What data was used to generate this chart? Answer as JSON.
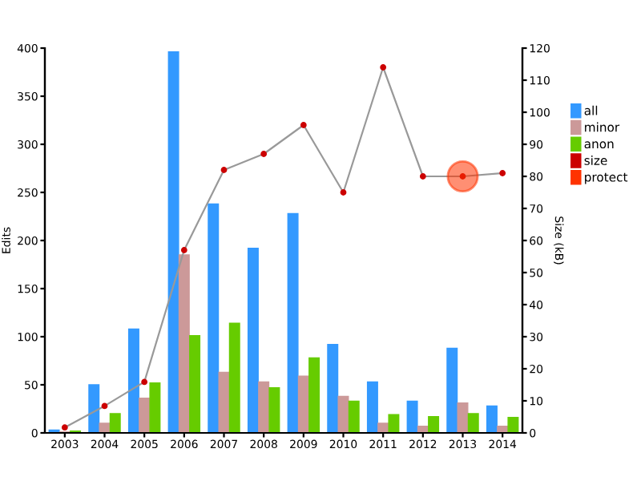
{
  "chart_data": {
    "type": "bar",
    "ylabel": "Edits",
    "y2label": "Size (kB)",
    "categories": [
      "2003",
      "2004",
      "2005",
      "2006",
      "2007",
      "2008",
      "2009",
      "2010",
      "2011",
      "2012",
      "2013",
      "2014"
    ],
    "series": [
      {
        "name": "all",
        "color": "#3399ff",
        "values": [
          3,
          50,
          108,
          396,
          238,
          192,
          228,
          92,
          53,
          33,
          88,
          28
        ]
      },
      {
        "name": "minor",
        "color": "#cc9999",
        "values": [
          1,
          10,
          36,
          185,
          63,
          53,
          59,
          38,
          10,
          7,
          31,
          7
        ]
      },
      {
        "name": "anon",
        "color": "#66cc00",
        "values": [
          2,
          20,
          52,
          101,
          114,
          47,
          78,
          33,
          19,
          17,
          20,
          16
        ]
      },
      {
        "name": "size",
        "type": "line",
        "axis": "y2",
        "color": "#cc0000",
        "marker": "circle",
        "values": [
          1.7,
          8.4,
          15.9,
          57,
          82,
          87,
          96,
          75,
          114,
          80,
          80,
          81
        ]
      },
      {
        "name": "protect",
        "type": "scatter",
        "axis": "y2",
        "color": "#ff3300",
        "values": [
          null,
          null,
          null,
          null,
          null,
          null,
          null,
          null,
          null,
          null,
          80,
          null
        ]
      }
    ],
    "ylim": [
      0,
      400
    ],
    "yticks": [
      0,
      50,
      100,
      150,
      200,
      250,
      300,
      350,
      400
    ],
    "y2lim": [
      0,
      120
    ],
    "y2ticks": [
      0,
      10,
      20,
      30,
      40,
      50,
      60,
      70,
      80,
      90,
      100,
      110,
      120
    ],
    "grid": false,
    "legend": "right"
  }
}
